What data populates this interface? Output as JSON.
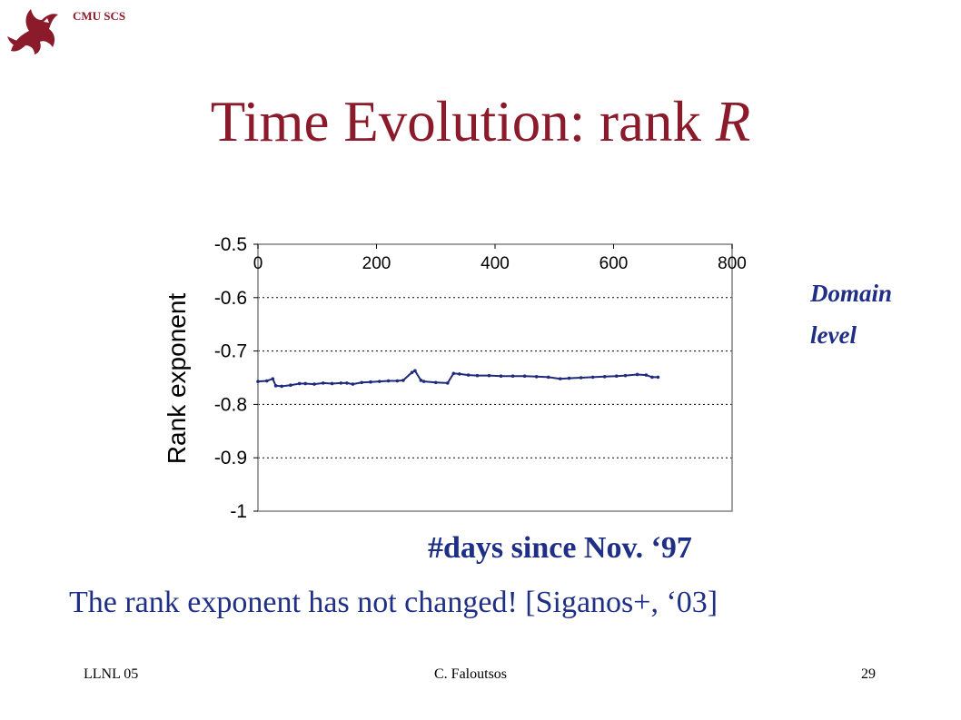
{
  "header": {
    "org": "CMU SCS",
    "logo_icon": "dragon-logo-icon",
    "title_main": "Time Evolution: rank ",
    "title_var": "R"
  },
  "side_note": {
    "line1": "Domain",
    "line2": "level"
  },
  "xaxis_caption": "#days since Nov. ‘97",
  "claim": "The rank exponent has not changed! [Siganos+, ‘03]",
  "footer": {
    "left": "LLNL 05",
    "center": "C. Faloutsos",
    "right": "29"
  },
  "colors": {
    "title": "#8b1a2b",
    "accent_text": "#1f2f86",
    "series": "#1f2a7a"
  },
  "chart_data": {
    "type": "line",
    "ylabel": "Rank exponent",
    "xlabel": "",
    "xlim": [
      0,
      800
    ],
    "ylim": [
      -1,
      -0.5
    ],
    "x_ticks": [
      0,
      200,
      400,
      600,
      800
    ],
    "x_tick_labels": [
      "0",
      "200",
      "400",
      "600",
      "800"
    ],
    "x_axis_position": "top",
    "y_ticks": [
      -0.5,
      -0.6,
      -0.7,
      -0.8,
      -0.9,
      -1
    ],
    "y_tick_labels": [
      "-0.5",
      "-0.6",
      "-0.7",
      "-0.8",
      "-0.9",
      "-1"
    ],
    "grid": "horizontal dashed",
    "series": [
      {
        "x": [
          0,
          15,
          25,
          30,
          40,
          55,
          70,
          80,
          95,
          110,
          125,
          140,
          150,
          160,
          175,
          190,
          205,
          220,
          235,
          245,
          260,
          265,
          275,
          280,
          300,
          320,
          330,
          340,
          355,
          370,
          390,
          410,
          430,
          450,
          470,
          490,
          510,
          525,
          545,
          565,
          585,
          605,
          620,
          640,
          655,
          665,
          675
        ],
        "y": [
          -0.757,
          -0.756,
          -0.752,
          -0.765,
          -0.766,
          -0.764,
          -0.761,
          -0.761,
          -0.762,
          -0.76,
          -0.761,
          -0.76,
          -0.76,
          -0.762,
          -0.759,
          -0.758,
          -0.757,
          -0.756,
          -0.756,
          -0.755,
          -0.74,
          -0.737,
          -0.755,
          -0.757,
          -0.759,
          -0.76,
          -0.742,
          -0.743,
          -0.745,
          -0.746,
          -0.746,
          -0.747,
          -0.747,
          -0.747,
          -0.748,
          -0.749,
          -0.752,
          -0.751,
          -0.75,
          -0.749,
          -0.748,
          -0.747,
          -0.746,
          -0.744,
          -0.745,
          -0.749,
          -0.749
        ]
      }
    ]
  }
}
